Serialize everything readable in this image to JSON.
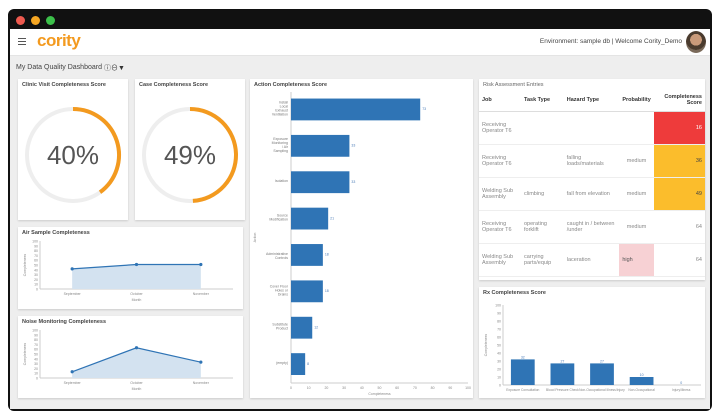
{
  "colors": {
    "accent": "#f39a1f",
    "bar": "#2f74b5",
    "red": "#ee3b3b",
    "amber": "#fbbd2c",
    "pink": "#f7d1d4"
  },
  "header": {
    "logo": "cority",
    "environment": "Environment: sample db | Welcome Cority_Demo",
    "menu_icon": "hamburger-icon"
  },
  "dashboard": {
    "title": "My Data Quality Dashboard",
    "icons": [
      "info-icon",
      "minus-circle-icon",
      "filter-icon"
    ]
  },
  "clinic": {
    "title": "Clinic Visit Completeness Score",
    "value": "40%",
    "percent": 40
  },
  "case": {
    "title": "Case Completeness Score",
    "value": "49%",
    "percent": 49
  },
  "chart_data": [
    {
      "type": "area",
      "title": "Air Sample Completeness",
      "categories": [
        "September",
        "October",
        "November"
      ],
      "values": [
        42,
        51,
        51
      ],
      "xlabel": "Month",
      "ylabel": "Completeness",
      "ylim": [
        0,
        100
      ],
      "yticks": [
        "0",
        "10",
        "20",
        "30",
        "40",
        "50",
        "60",
        "70",
        "80",
        "90",
        "100"
      ]
    },
    {
      "type": "area",
      "title": "Noise Monitoring Completeness",
      "categories": [
        "September",
        "October",
        "November"
      ],
      "values": [
        13,
        63,
        33
      ],
      "xlabel": "Month",
      "ylabel": "Completeness",
      "ylim": [
        0,
        100
      ],
      "yticks": [
        "0",
        "10",
        "20",
        "30",
        "40",
        "50",
        "60",
        "70",
        "80",
        "90",
        "100"
      ]
    },
    {
      "type": "bar",
      "orientation": "horizontal",
      "title": "Action Completeness Score",
      "categories": [
        "Install Local Exhaust Ventilation",
        "Exposure Monitoring / Air Sampling",
        "Isolation",
        "Source Modification",
        "Administrative Controls",
        "Cover Floor Holes or Drains",
        "Substitute Product",
        "(empty)"
      ],
      "values": [
        73,
        33,
        33,
        21,
        18,
        18,
        12,
        8
      ],
      "xlabel": "Completeness",
      "ylabel": "Action",
      "xlim": [
        0,
        100
      ],
      "xticks": [
        "0",
        "10",
        "20",
        "30",
        "40",
        "50",
        "60",
        "70",
        "80",
        "90",
        "100"
      ]
    },
    {
      "type": "bar",
      "title": "Rx Completeness Score",
      "categories": [
        "Exposure Consultation",
        "Blood Pressure Check",
        "Non-Occupational Illness/Injury",
        "Non-Occupational",
        "Injury/Illness"
      ],
      "values": [
        32,
        27,
        27,
        10,
        0
      ],
      "xlabel": "",
      "ylabel": "Completeness",
      "ylim": [
        0,
        100
      ],
      "yticks": [
        "0",
        "10",
        "20",
        "30",
        "40",
        "50",
        "60",
        "70",
        "80",
        "90",
        "100"
      ]
    }
  ],
  "risk": {
    "title": "Risk Assessment Entries",
    "columns": [
      "Job",
      "Task Type",
      "Hazard Type",
      "Probability",
      "Completeness Score"
    ],
    "rows": [
      {
        "job": "Receiving Operator T6",
        "task": "",
        "hazard": "",
        "prob": "",
        "score": "16",
        "score_color": "red"
      },
      {
        "job": "Receiving Operator T6",
        "task": "",
        "hazard": "falling loads/materials",
        "prob": "medium",
        "score": "36",
        "score_color": "amber"
      },
      {
        "job": "Welding Sub Assembly",
        "task": "climbing",
        "hazard": "fall from elevation",
        "prob": "medium",
        "score": "49",
        "score_color": "amber"
      },
      {
        "job": "Receiving Operator T6",
        "task": "operating forklift",
        "hazard": "caught in / between /under",
        "prob": "medium",
        "score": "64",
        "score_color": ""
      },
      {
        "job": "Welding Sub Assembly",
        "task": "carrying parts/equip",
        "hazard": "laceration",
        "prob": "high",
        "score": "64",
        "score_color": "",
        "prob_color": "pink"
      }
    ]
  }
}
